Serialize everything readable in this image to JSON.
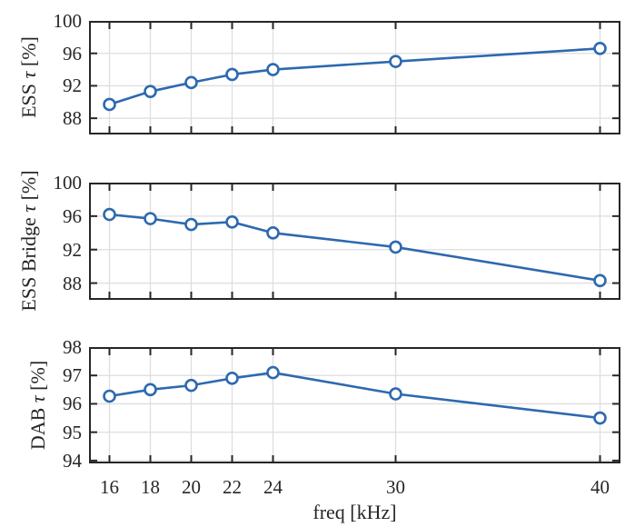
{
  "figure": {
    "background": "#ffffff",
    "axis_color": "#262626",
    "grid_color": "#dedede",
    "line_color": "#2d69af",
    "marker_fill": "#ffffff"
  },
  "chart_data": {
    "type": "line",
    "title": "",
    "xlabel": "freq [kHz]",
    "x": [
      16,
      18,
      20,
      22,
      24,
      30,
      40
    ],
    "x_tick_labels": [
      "16",
      "18",
      "20",
      "22",
      "24",
      "30",
      "40"
    ],
    "xlim": [
      15,
      41
    ],
    "grid": true,
    "marker": "circle",
    "legend": null,
    "subplots": [
      {
        "ylabel": "ESS τ [%]",
        "ylabel_parts": {
          "prefix": "ESS ",
          "tau": "τ",
          "suffix": " [%]"
        },
        "ylim": [
          86,
          100
        ],
        "y_ticks": [
          88,
          92,
          96,
          100
        ],
        "y_tick_labels": [
          "88",
          "92",
          "96",
          "100"
        ],
        "values": [
          89.7,
          91.3,
          92.4,
          93.4,
          94.0,
          95.0,
          96.6
        ]
      },
      {
        "ylabel": "ESS Bridge τ [%]",
        "ylabel_parts": {
          "prefix": "ESS Bridge ",
          "tau": "τ",
          "suffix": " [%]"
        },
        "ylim": [
          86,
          100
        ],
        "y_ticks": [
          88,
          92,
          96,
          100
        ],
        "y_tick_labels": [
          "88",
          "92",
          "96",
          "100"
        ],
        "values": [
          96.2,
          95.7,
          95.0,
          95.3,
          94.0,
          92.3,
          88.3
        ]
      },
      {
        "ylabel": "DAB τ [%]",
        "ylabel_parts": {
          "prefix": "DAB ",
          "tau": "τ",
          "suffix": " [%]"
        },
        "ylim": [
          93.9,
          98
        ],
        "y_ticks": [
          94,
          95,
          96,
          97,
          98
        ],
        "y_tick_labels": [
          "94",
          "95",
          "96",
          "97",
          "98"
        ],
        "values": [
          96.27,
          96.5,
          96.65,
          96.9,
          97.1,
          96.35,
          95.5
        ]
      }
    ]
  }
}
